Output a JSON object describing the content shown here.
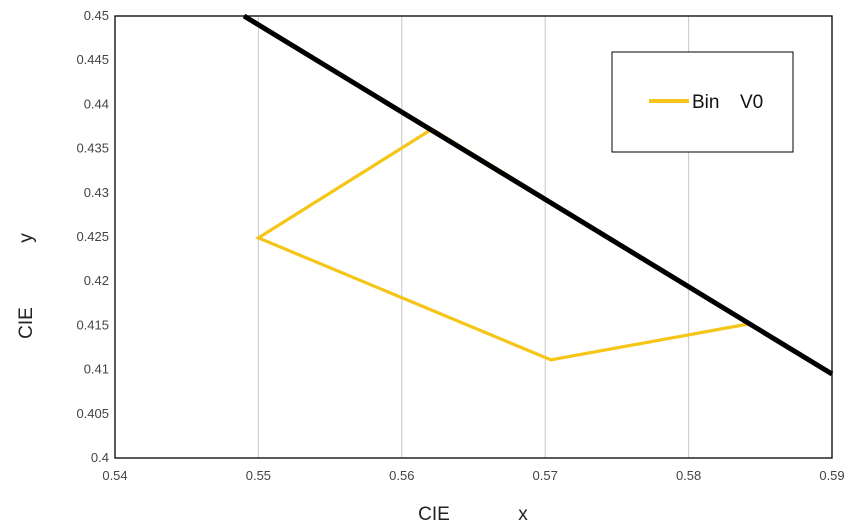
{
  "chart_data": {
    "type": "line",
    "title": "",
    "xlabel": "CIE x",
    "ylabel": "CIE y",
    "xlabel_parts": [
      "CIE",
      "x"
    ],
    "ylabel_parts": [
      "CIE",
      "y"
    ],
    "xlim": [
      0.54,
      0.59
    ],
    "ylim": [
      0.4,
      0.45
    ],
    "x_ticks": [
      0.54,
      0.55,
      0.56,
      0.57,
      0.58,
      0.59
    ],
    "x_tick_labels": [
      "0.54",
      "0.55",
      "0.56",
      "0.57",
      "0.58",
      "0.59"
    ],
    "y_ticks": [
      0.4,
      0.405,
      0.41,
      0.415,
      0.42,
      0.425,
      0.43,
      0.435,
      0.44,
      0.445,
      0.45
    ],
    "y_tick_labels": [
      "0.4",
      "0.405",
      "0.41",
      "0.415",
      "0.42",
      "0.425",
      "0.43",
      "0.435",
      "0.44",
      "0.445",
      "0.45"
    ],
    "grid": "vertical",
    "legend_position": "top-right",
    "legend_label_parts": [
      "Bin",
      "V0"
    ],
    "series": [
      {
        "name": "Bin V0",
        "color": "#F5C518",
        "closed": true,
        "points": [
          {
            "x": 0.5621,
            "y": 0.4372
          },
          {
            "x": 0.55,
            "y": 0.4249
          },
          {
            "x": 0.5704,
            "y": 0.4111
          },
          {
            "x": 0.5843,
            "y": 0.4152
          }
        ]
      },
      {
        "color": "#000000",
        "points": [
          {
            "x": 0.549,
            "y": 0.45
          },
          {
            "x": 0.59,
            "y": 0.4095
          }
        ]
      }
    ]
  }
}
